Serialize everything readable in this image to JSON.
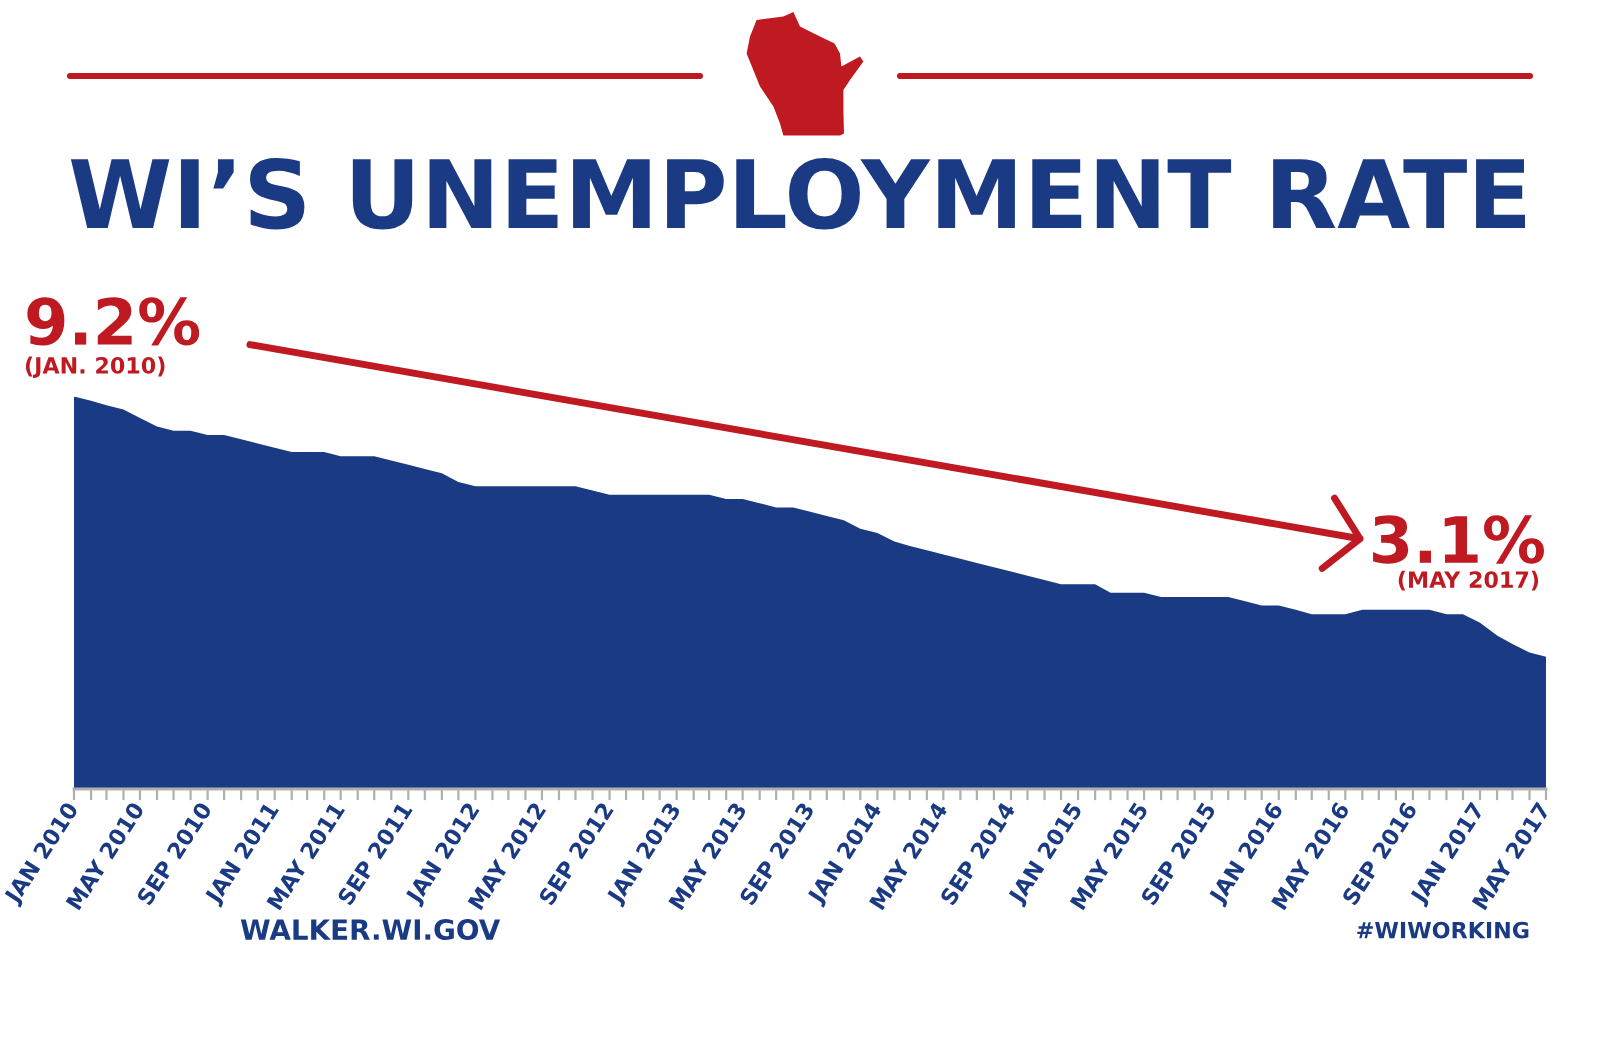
{
  "chart_data": {
    "type": "area",
    "title": "WI’S UNEMPLOYMENT RATE",
    "x": [
      "2010-01",
      "2010-02",
      "2010-03",
      "2010-04",
      "2010-05",
      "2010-06",
      "2010-07",
      "2010-08",
      "2010-09",
      "2010-10",
      "2010-11",
      "2010-12",
      "2011-01",
      "2011-02",
      "2011-03",
      "2011-04",
      "2011-05",
      "2011-06",
      "2011-07",
      "2011-08",
      "2011-09",
      "2011-10",
      "2011-11",
      "2011-12",
      "2012-01",
      "2012-02",
      "2012-03",
      "2012-04",
      "2012-05",
      "2012-06",
      "2012-07",
      "2012-08",
      "2012-09",
      "2012-10",
      "2012-11",
      "2012-12",
      "2013-01",
      "2013-02",
      "2013-03",
      "2013-04",
      "2013-05",
      "2013-06",
      "2013-07",
      "2013-08",
      "2013-09",
      "2013-10",
      "2013-11",
      "2013-12",
      "2014-01",
      "2014-02",
      "2014-03",
      "2014-04",
      "2014-05",
      "2014-06",
      "2014-07",
      "2014-08",
      "2014-09",
      "2014-10",
      "2014-11",
      "2014-12",
      "2015-01",
      "2015-02",
      "2015-03",
      "2015-04",
      "2015-05",
      "2015-06",
      "2015-07",
      "2015-08",
      "2015-09",
      "2015-10",
      "2015-11",
      "2015-12",
      "2016-01",
      "2016-02",
      "2016-03",
      "2016-04",
      "2016-05",
      "2016-06",
      "2016-07",
      "2016-08",
      "2016-09",
      "2016-10",
      "2016-11",
      "2016-12",
      "2017-01",
      "2017-02",
      "2017-03",
      "2017-04",
      "2017-05"
    ],
    "values": [
      9.2,
      9.1,
      9.0,
      8.9,
      8.7,
      8.5,
      8.4,
      8.4,
      8.3,
      8.3,
      8.2,
      8.1,
      8.0,
      7.9,
      7.9,
      7.9,
      7.8,
      7.8,
      7.8,
      7.7,
      7.6,
      7.5,
      7.4,
      7.2,
      7.1,
      7.1,
      7.1,
      7.1,
      7.1,
      7.1,
      7.1,
      7.0,
      6.9,
      6.9,
      6.9,
      6.9,
      6.9,
      6.9,
      6.9,
      6.8,
      6.8,
      6.7,
      6.6,
      6.6,
      6.5,
      6.4,
      6.3,
      6.1,
      6.0,
      5.8,
      5.7,
      5.6,
      5.5,
      5.4,
      5.3,
      5.2,
      5.1,
      5.0,
      4.9,
      4.8,
      4.8,
      4.8,
      4.6,
      4.6,
      4.6,
      4.5,
      4.5,
      4.5,
      4.5,
      4.5,
      4.4,
      4.3,
      4.3,
      4.2,
      4.1,
      4.1,
      4.1,
      4.2,
      4.2,
      4.2,
      4.2,
      4.2,
      4.1,
      4.1,
      3.9,
      3.6,
      3.4,
      3.2,
      3.1
    ],
    "value_labels": [
      "9.2%",
      null,
      null,
      null,
      null,
      null,
      null,
      null,
      null,
      null,
      null,
      null,
      null,
      null,
      null,
      null,
      null,
      null,
      null,
      null,
      null,
      null,
      null,
      null,
      null,
      null,
      null,
      null,
      null,
      null,
      null,
      null,
      null,
      null,
      null,
      null,
      null,
      null,
      null,
      null,
      null,
      null,
      null,
      null,
      null,
      null,
      null,
      null,
      null,
      null,
      null,
      null,
      null,
      null,
      null,
      null,
      null,
      null,
      null,
      null,
      null,
      null,
      null,
      null,
      null,
      null,
      null,
      null,
      null,
      null,
      null,
      null,
      null,
      null,
      null,
      null,
      null,
      null,
      null,
      null,
      null,
      null,
      null,
      null,
      null,
      null,
      null,
      null,
      "3.1%"
    ],
    "color": "#1b3a84",
    "xlim": [
      "2010-01",
      "2017-05"
    ],
    "xticks": [
      {
        "value": "2010-01",
        "label": "JAN 2010"
      },
      {
        "value": "2010-02",
        "label": null
      },
      {
        "value": "2010-03",
        "label": null
      },
      {
        "value": "2010-04",
        "label": null
      },
      {
        "value": "2010-05",
        "label": "MAY 2010"
      },
      {
        "value": "2010-06",
        "label": null
      },
      {
        "value": "2010-07",
        "label": null
      },
      {
        "value": "2010-08",
        "label": null
      },
      {
        "value": "2010-09",
        "label": "SEP 2010"
      },
      {
        "value": "2010-10",
        "label": null
      },
      {
        "value": "2010-11",
        "label": null
      },
      {
        "value": "2010-12",
        "label": null
      },
      {
        "value": "2011-01",
        "label": "JAN 2011"
      },
      {
        "value": "2011-02",
        "label": null
      },
      {
        "value": "2011-03",
        "label": null
      },
      {
        "value": "2011-04",
        "label": null
      },
      {
        "value": "2011-05",
        "label": "MAY 2011"
      },
      {
        "value": "2011-06",
        "label": null
      },
      {
        "value": "2011-07",
        "label": null
      },
      {
        "value": "2011-08",
        "label": null
      },
      {
        "value": "2011-09",
        "label": "SEP 2011"
      },
      {
        "value": "2011-10",
        "label": null
      },
      {
        "value": "2011-11",
        "label": null
      },
      {
        "value": "2011-12",
        "label": null
      },
      {
        "value": "2012-01",
        "label": "JAN 2012"
      },
      {
        "value": "2012-02",
        "label": null
      },
      {
        "value": "2012-03",
        "label": null
      },
      {
        "value": "2012-04",
        "label": null
      },
      {
        "value": "2012-05",
        "label": "MAY 2012"
      },
      {
        "value": "2012-06",
        "label": null
      },
      {
        "value": "2012-07",
        "label": null
      },
      {
        "value": "2012-08",
        "label": null
      },
      {
        "value": "2012-09",
        "label": "SEP 2012"
      },
      {
        "value": "2012-10",
        "label": null
      },
      {
        "value": "2012-11",
        "label": null
      },
      {
        "value": "2012-12",
        "label": null
      },
      {
        "value": "2013-01",
        "label": "JAN 2013"
      },
      {
        "value": "2013-02",
        "label": null
      },
      {
        "value": "2013-03",
        "label": null
      },
      {
        "value": "2013-04",
        "label": null
      },
      {
        "value": "2013-05",
        "label": "MAY 2013"
      },
      {
        "value": "2013-06",
        "label": null
      },
      {
        "value": "2013-07",
        "label": null
      },
      {
        "value": "2013-08",
        "label": null
      },
      {
        "value": "2013-09",
        "label": "SEP 2013"
      },
      {
        "value": "2013-10",
        "label": null
      },
      {
        "value": "2013-11",
        "label": null
      },
      {
        "value": "2013-12",
        "label": null
      },
      {
        "value": "2014-01",
        "label": "JAN 2014"
      },
      {
        "value": "2014-02",
        "label": null
      },
      {
        "value": "2014-03",
        "label": null
      },
      {
        "value": "2014-04",
        "label": null
      },
      {
        "value": "2014-05",
        "label": "MAY 2014"
      },
      {
        "value": "2014-06",
        "label": null
      },
      {
        "value": "2014-07",
        "label": null
      },
      {
        "value": "2014-08",
        "label": null
      },
      {
        "value": "2014-09",
        "label": "SEP 2014"
      },
      {
        "value": "2014-10",
        "label": null
      },
      {
        "value": "2014-11",
        "label": null
      },
      {
        "value": "2014-12",
        "label": null
      },
      {
        "value": "2015-01",
        "label": "JAN 2015"
      },
      {
        "value": "2015-02",
        "label": null
      },
      {
        "value": "2015-03",
        "label": null
      },
      {
        "value": "2015-04",
        "label": null
      },
      {
        "value": "2015-05",
        "label": "MAY 2015"
      },
      {
        "value": "2015-06",
        "label": null
      },
      {
        "value": "2015-07",
        "label": null
      },
      {
        "value": "2015-08",
        "label": null
      },
      {
        "value": "2015-09",
        "label": "SEP 2015"
      },
      {
        "value": "2015-10",
        "label": null
      },
      {
        "value": "2015-11",
        "label": null
      },
      {
        "value": "2015-12",
        "label": null
      },
      {
        "value": "2016-01",
        "label": "JAN 2016"
      },
      {
        "value": "2016-02",
        "label": null
      },
      {
        "value": "2016-03",
        "label": null
      },
      {
        "value": "2016-04",
        "label": null
      },
      {
        "value": "2016-05",
        "label": "MAY 2016"
      },
      {
        "value": "2016-06",
        "label": null
      },
      {
        "value": "2016-07",
        "label": null
      },
      {
        "value": "2016-08",
        "label": null
      },
      {
        "value": "2016-09",
        "label": "SEP 2016"
      },
      {
        "value": "2016-10",
        "label": null
      },
      {
        "value": "2016-11",
        "label": null
      },
      {
        "value": "2016-12",
        "label": null
      },
      {
        "value": "2017-01",
        "label": "JAN 2017"
      },
      {
        "value": "2017-02",
        "label": null
      },
      {
        "value": "2017-03",
        "label": null
      },
      {
        "value": "2017-04",
        "label": null
      },
      {
        "value": "2017-05",
        "label": "MAY 2017"
      }
    ],
    "tick_labels": "x",
    "annotations": [
      "(JAN. 2010)",
      "(MAY 2017)",
      "WALKER.WI.GOV",
      "#WIWORKING"
    ]
  }
}
